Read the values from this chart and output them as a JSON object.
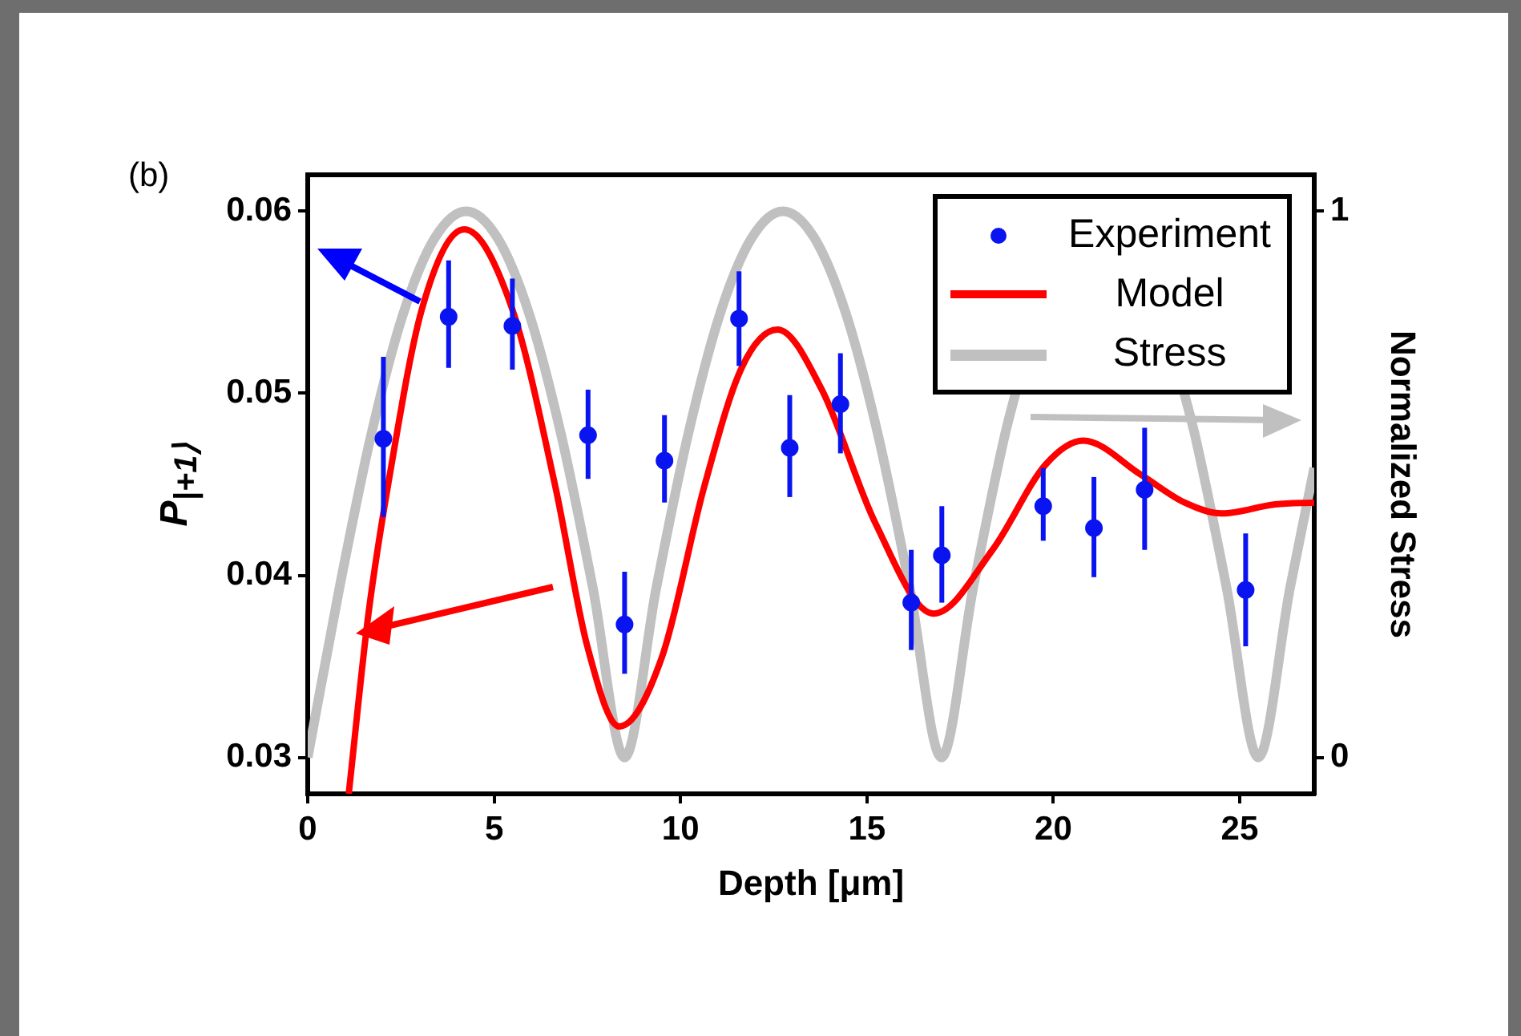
{
  "chart_data": {
    "type": "line",
    "xlabel": "Depth [μm]",
    "ylabel": "P$_{|+1⟩}$",
    "y2label": "Normalized Stress",
    "annotations": [
      "(b)"
    ],
    "xlim": [
      0,
      27
    ],
    "xticks": [
      0,
      5,
      10,
      15,
      20,
      25
    ],
    "ylim": [
      0.028,
      0.062
    ],
    "yticks": [
      0.03,
      0.04,
      0.05,
      0.06
    ],
    "y2lim": [
      -0.0667,
      1.0667
    ],
    "y2ticks": [
      0,
      1
    ],
    "grid": false,
    "legend": "top right",
    "line_style": "solid",
    "series": [
      {
        "name": "Experiment",
        "type": "scatter",
        "marker": "circle",
        "color": "#0a14f0",
        "x": [
          2.03,
          3.78,
          5.49,
          7.52,
          8.5,
          9.57,
          11.57,
          12.93,
          14.29,
          16.19,
          17.01,
          19.73,
          21.09,
          22.45,
          25.16
        ],
        "values": [
          0.0475,
          0.0542,
          0.0537,
          0.0477,
          0.0373,
          0.0463,
          0.0541,
          0.047,
          0.0494,
          0.0385,
          0.0411,
          0.0438,
          0.0426,
          0.0447,
          0.0392
        ],
        "errors": [
          [
            0.0432,
            0.052
          ],
          [
            0.0514,
            0.0573
          ],
          [
            0.0513,
            0.0563
          ],
          [
            0.0453,
            0.0502
          ],
          [
            0.0346,
            0.0402
          ],
          [
            0.044,
            0.0488
          ],
          [
            0.0515,
            0.0567
          ],
          [
            0.0443,
            0.0499
          ],
          [
            0.0467,
            0.0522
          ],
          [
            0.0359,
            0.0414
          ],
          [
            0.0385,
            0.0438
          ],
          [
            0.0419,
            0.0459
          ],
          [
            0.0399,
            0.0454
          ],
          [
            0.0414,
            0.0481
          ],
          [
            0.0361,
            0.0423
          ]
        ]
      },
      {
        "name": "Model",
        "color": "#ff0000",
        "x": [
          1.1,
          1.63,
          2.2,
          3.06,
          4.2,
          5.49,
          6.64,
          7.5,
          8.36,
          9.5,
          10.64,
          11.64,
          12.6,
          13.79,
          15.22,
          16.79,
          18.37,
          19.8,
          20.8,
          22.37,
          23.52,
          24.52,
          25.95,
          27
        ],
        "values": [
          0.028,
          0.0379,
          0.0455,
          0.0546,
          0.059,
          0.0546,
          0.0449,
          0.0361,
          0.0317,
          0.0355,
          0.0449,
          0.0514,
          0.0535,
          0.0502,
          0.0429,
          0.0379,
          0.0414,
          0.0461,
          0.0474,
          0.0455,
          0.044,
          0.0434,
          0.0439,
          0.044
        ]
      },
      {
        "name": "Stress",
        "axis": "y2",
        "color": "#c0c0c0",
        "x": [
          0,
          0.85,
          1.7,
          2.55,
          3.4,
          4.25,
          5.1,
          5.95,
          6.8,
          7.65,
          8.5,
          9.35,
          10.2,
          11.05,
          11.9,
          12.75,
          13.6,
          14.45,
          15.3,
          16.15,
          17,
          17.85,
          18.7,
          19.0,
          21.25,
          23.5,
          23.8,
          24.65,
          25.5,
          26.35,
          27
        ],
        "values": [
          0,
          0.31,
          0.59,
          0.81,
          0.95,
          1,
          0.95,
          0.81,
          0.59,
          0.31,
          0,
          0.31,
          0.59,
          0.81,
          0.95,
          1,
          0.95,
          0.81,
          0.59,
          0.31,
          0,
          0.31,
          0.59,
          0.67,
          null,
          0.67,
          0.59,
          0.31,
          0,
          0.31,
          0.53
        ]
      }
    ]
  }
}
